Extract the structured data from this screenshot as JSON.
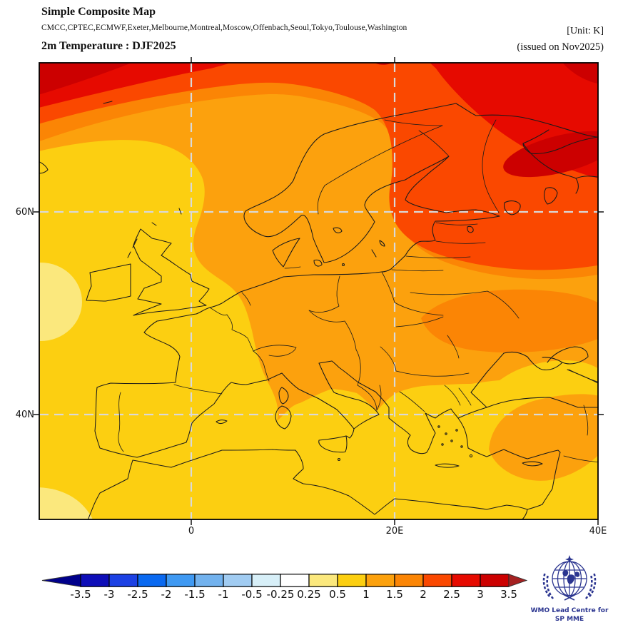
{
  "header": {
    "title": "Simple Composite Map",
    "models_line": "CMCC,CPTEC,ECMWF,Exeter,Melbourne,Montreal,Moscow,Offenbach,Seoul,Tokyo,Toulouse,Washington",
    "unit_label": "[Unit: K]",
    "product_title": "2m Temperature : DJF2025",
    "issued_label": "(issued on Nov2025)"
  },
  "map": {
    "x_ticks": [
      "0",
      "20E",
      "40E"
    ],
    "y_ticks": [
      "60N",
      "40N"
    ]
  },
  "legend": {
    "tick_labels": [
      "-3.5",
      "-3",
      "-2.5",
      "-2",
      "-1.5",
      "-1",
      "-0.5",
      "-0.25",
      "0.25",
      "0.5",
      "1",
      "1.5",
      "2",
      "2.5",
      "3",
      "3.5"
    ],
    "colors": [
      "#0E0EB8",
      "#1C41E3",
      "#0A69F0",
      "#3F99F2",
      "#72B2EE",
      "#A1CCF2",
      "#D7EFF8",
      "#FFFFFF",
      "#FBE87D",
      "#FCCF11",
      "#FCA10D",
      "#FB8505",
      "#FA4800",
      "#E60A00",
      "#CC0000"
    ],
    "left_arrow_color": "#00008B",
    "right_arrow_color": "#A52121"
  },
  "palette": {
    "yellow": "#FCCF11",
    "pale_yellow": "#FBE87D",
    "orange": "#FCA10D",
    "dark_orange": "#FB8505",
    "orange_red": "#FA4800",
    "red": "#E60A00",
    "dark_red": "#CC0000",
    "grid": "#D9D9D9",
    "coast": "#1A1A1A",
    "frame": "#000000"
  },
  "logo": {
    "line1": "WMO Lead Centre for",
    "line2": "SP MME",
    "color": "#2B3590"
  },
  "chart_data": {
    "type": "filled_contour_map",
    "title": "Simple Composite Map",
    "variable": "2m Temperature",
    "season": "DJF2025",
    "issued": "Nov2025",
    "unit": "K",
    "models": [
      "CMCC",
      "CPTEC",
      "ECMWF",
      "Exeter",
      "Melbourne",
      "Montreal",
      "Moscow",
      "Offenbach",
      "Seoul",
      "Tokyo",
      "Toulouse",
      "Washington"
    ],
    "contour_levels": [
      -3.5,
      -3,
      -2.5,
      -2,
      -1.5,
      -1,
      -0.5,
      -0.25,
      0.25,
      0.5,
      1,
      1.5,
      2,
      2.5,
      3,
      3.5
    ],
    "level_colors": [
      "#0E0EB8",
      "#1C41E3",
      "#0A69F0",
      "#3F99F2",
      "#72B2EE",
      "#A1CCF2",
      "#D7EFF8",
      "#FFFFFF",
      "#FBE87D",
      "#FCCF11",
      "#FCA10D",
      "#FB8505",
      "#FA4800",
      "#E60A00",
      "#CC0000"
    ],
    "lon_ticks": [
      "0",
      "20E",
      "40E"
    ],
    "lat_ticks": [
      "60N",
      "40N"
    ],
    "field_summary": "All-positive anomalies: 0.5-1 K over UK, France, Iberia and the Mediterranean; 1-2 K over central Europe, Scandinavia and the Balkans; 2-3 K over Finland and NW Russia; 3-3.5 K maxima in the NW corner and near the White Sea; small 0.25-0.5 K patches on the western Atlantic edge"
  }
}
